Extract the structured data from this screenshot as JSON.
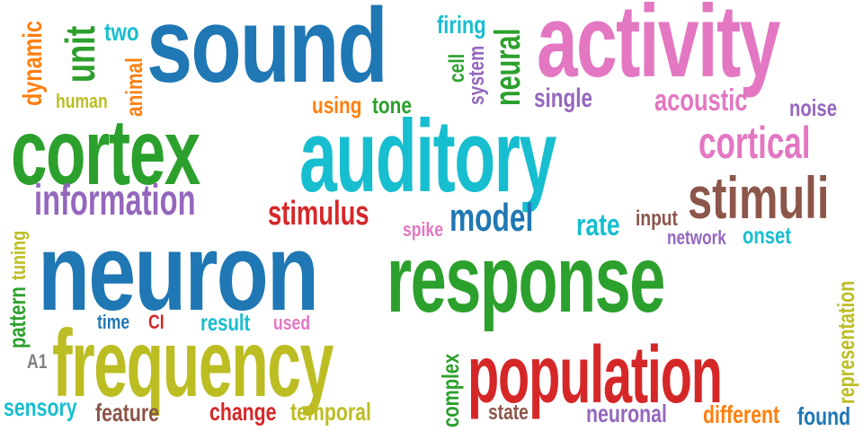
{
  "word_cloud": {
    "palette": {
      "blue": "#1f77b4",
      "green": "#2ca02c",
      "cyan": "#17becf",
      "pink": "#e377c2",
      "purple": "#9467bd",
      "red": "#d62728",
      "olive": "#bcbd22",
      "brown": "#8c564b",
      "orange": "#ff7f0e",
      "gray": "#7f7f7f"
    },
    "words": [
      {
        "text": "sound",
        "color": "#1f77b4"
      },
      {
        "text": "activity",
        "color": "#e377c2"
      },
      {
        "text": "cortex",
        "color": "#2ca02c"
      },
      {
        "text": "auditory",
        "color": "#17becf"
      },
      {
        "text": "neuron",
        "color": "#1f77b4"
      },
      {
        "text": "response",
        "color": "#2ca02c"
      },
      {
        "text": "frequency",
        "color": "#bcbd22"
      },
      {
        "text": "population",
        "color": "#d62728"
      },
      {
        "text": "information",
        "color": "#9467bd"
      },
      {
        "text": "stimuli",
        "color": "#8c564b"
      },
      {
        "text": "cortical",
        "color": "#e377c2"
      },
      {
        "text": "stimulus",
        "color": "#d62728"
      },
      {
        "text": "model",
        "color": "#1f77b4"
      },
      {
        "text": "unit",
        "color": "#2ca02c"
      },
      {
        "text": "acoustic",
        "color": "#e377c2"
      },
      {
        "text": "single",
        "color": "#9467bd"
      },
      {
        "text": "neural",
        "color": "#2ca02c"
      },
      {
        "text": "two",
        "color": "#17becf"
      },
      {
        "text": "firing",
        "color": "#17becf"
      },
      {
        "text": "cell",
        "color": "#2ca02c"
      },
      {
        "text": "system",
        "color": "#9467bd"
      },
      {
        "text": "dynamic",
        "color": "#ff7f0e"
      },
      {
        "text": "animal",
        "color": "#ff7f0e"
      },
      {
        "text": "human",
        "color": "#bcbd22"
      },
      {
        "text": "using",
        "color": "#ff7f0e"
      },
      {
        "text": "tone",
        "color": "#2ca02c"
      },
      {
        "text": "noise",
        "color": "#9467bd"
      },
      {
        "text": "rate",
        "color": "#17becf"
      },
      {
        "text": "input",
        "color": "#8c564b"
      },
      {
        "text": "spike",
        "color": "#e377c2"
      },
      {
        "text": "network",
        "color": "#9467bd"
      },
      {
        "text": "onset",
        "color": "#17becf"
      },
      {
        "text": "tuning",
        "color": "#bcbd22"
      },
      {
        "text": "pattern",
        "color": "#2ca02c"
      },
      {
        "text": "time",
        "color": "#1f77b4"
      },
      {
        "text": "CI",
        "color": "#d62728"
      },
      {
        "text": "result",
        "color": "#17becf"
      },
      {
        "text": "used",
        "color": "#e377c2"
      },
      {
        "text": "A1",
        "color": "#7f7f7f"
      },
      {
        "text": "sensory",
        "color": "#17becf"
      },
      {
        "text": "feature",
        "color": "#8c564b"
      },
      {
        "text": "change",
        "color": "#d62728"
      },
      {
        "text": "temporal",
        "color": "#bcbd22"
      },
      {
        "text": "complex",
        "color": "#2ca02c"
      },
      {
        "text": "state",
        "color": "#8c564b"
      },
      {
        "text": "neuronal",
        "color": "#9467bd"
      },
      {
        "text": "different",
        "color": "#ff7f0e"
      },
      {
        "text": "found",
        "color": "#1f77b4"
      },
      {
        "text": "representation",
        "color": "#bcbd22"
      }
    ]
  }
}
